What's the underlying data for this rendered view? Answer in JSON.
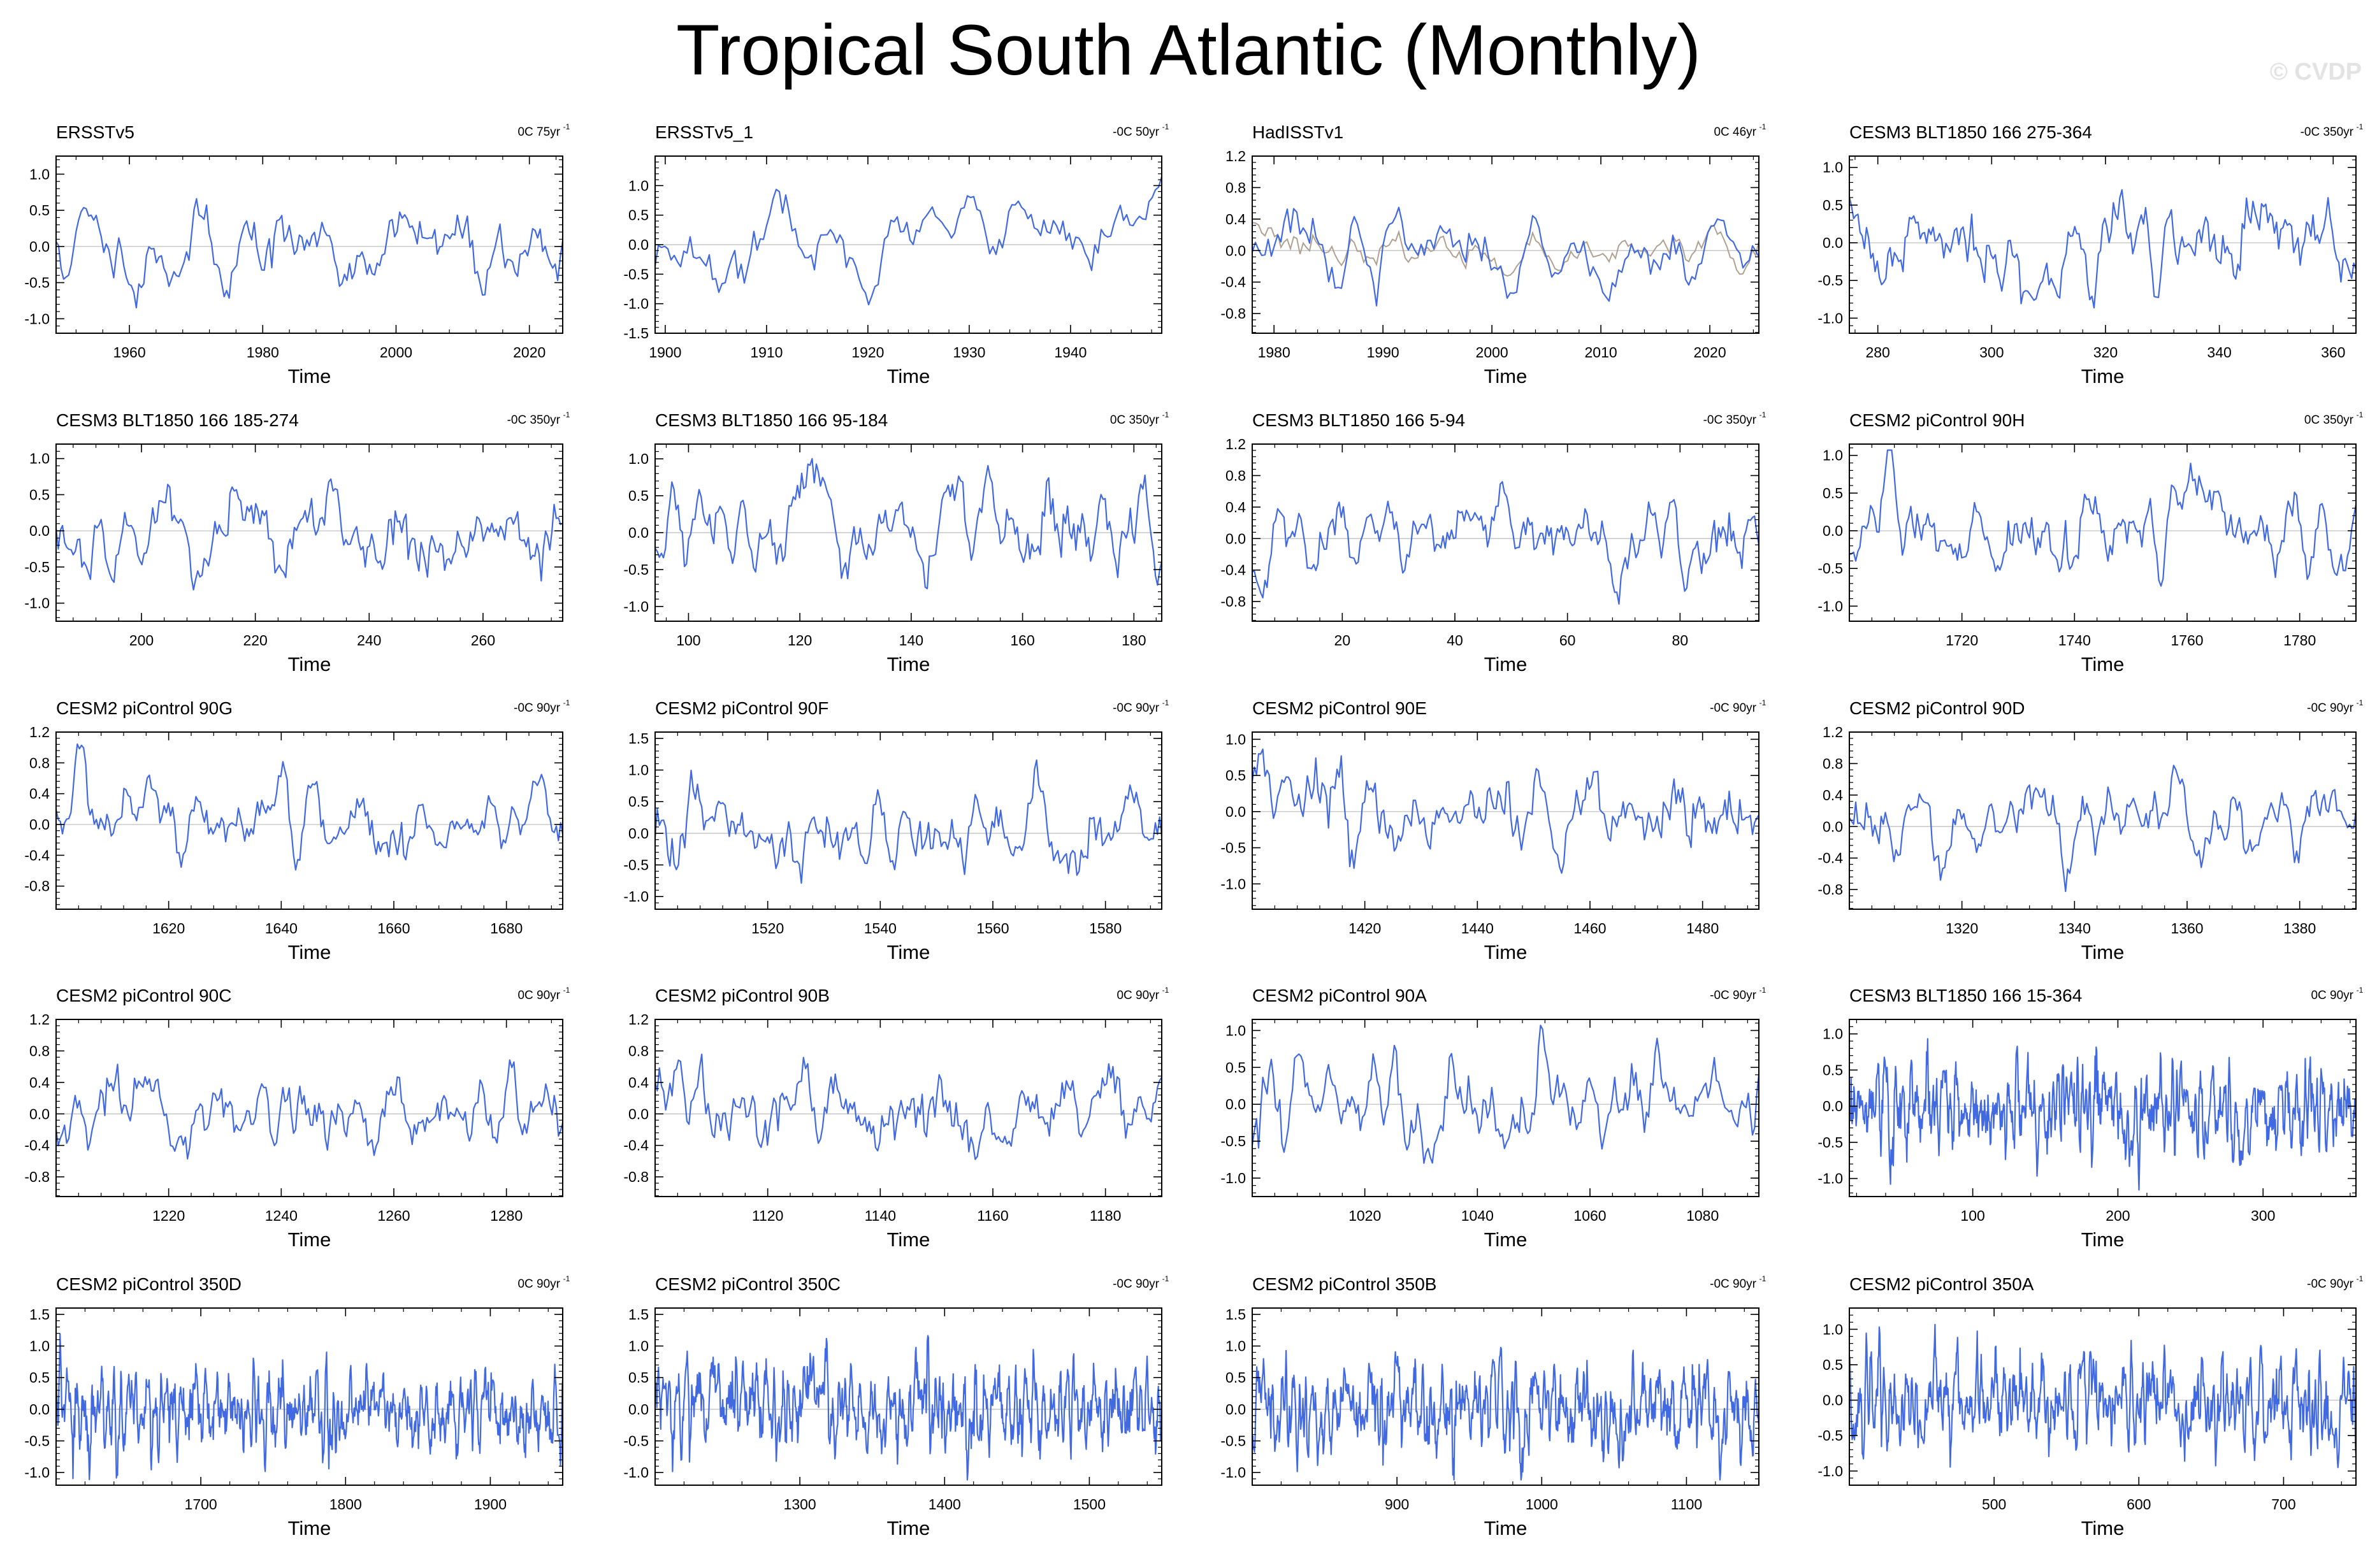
{
  "title": "Tropical South Atlantic (Monthly)",
  "watermark": "© CVDP",
  "series_color": "#4169e1",
  "secondary_color": "#b0a090",
  "chart_data": [
    {
      "type": "line",
      "title": "ERSSTv5",
      "trend": "0C 75yr",
      "xlabel": "Time",
      "xlim": [
        1949,
        2025
      ],
      "xticks": [
        1960,
        1980,
        2000,
        2020
      ],
      "ylim": [
        -1.2,
        1.25
      ],
      "yticks": [
        -1.0,
        -0.5,
        0.0,
        0.5,
        1.0
      ],
      "ytick_labels": [
        "-1.0",
        "-0.5",
        "0.0",
        "0.5",
        "1.0"
      ],
      "amp": 0.32,
      "smooth": 6,
      "seed": 11
    },
    {
      "type": "line",
      "title": "ERSSTv5_1",
      "trend": "-0C 50yr",
      "xlabel": "Time",
      "xlim": [
        1899,
        1949
      ],
      "xticks": [
        1900,
        1910,
        1920,
        1930,
        1940
      ],
      "ylim": [
        -1.5,
        1.5
      ],
      "yticks": [
        -1.5,
        -1.0,
        -0.5,
        0.0,
        0.5,
        1.0
      ],
      "ytick_labels": [
        "-1.5",
        "-1.0",
        "-0.5",
        "0.0",
        "0.5",
        "1.0"
      ],
      "amp": 0.38,
      "smooth": 8,
      "seed": 23
    },
    {
      "type": "line",
      "title": "HadISSTv1",
      "trend": "0C 46yr",
      "xlabel": "Time",
      "xlim": [
        1978,
        2024.5
      ],
      "xticks": [
        1980,
        1990,
        2000,
        2010,
        2020
      ],
      "ylim": [
        -1.05,
        1.2
      ],
      "yticks": [
        -0.8,
        -0.4,
        0.0,
        0.4,
        0.8,
        1.2
      ],
      "ytick_labels": [
        "-0.8",
        "-0.4",
        "0.0",
        "0.4",
        "0.8",
        "1.2"
      ],
      "amp": 0.28,
      "smooth": 6,
      "seed": 37,
      "secondary": true
    },
    {
      "type": "line",
      "title": "CESM3 BLT1850 166 275-364",
      "trend": "-0C 350yr",
      "xlabel": "Time",
      "xlim": [
        275,
        364
      ],
      "xticks": [
        280,
        300,
        320,
        340,
        360
      ],
      "ylim": [
        -1.2,
        1.15
      ],
      "yticks": [
        -1.0,
        -0.5,
        0.0,
        0.5,
        1.0
      ],
      "ytick_labels": [
        "-1.0",
        "-0.5",
        "0.0",
        "0.5",
        "1.0"
      ],
      "amp": 0.34,
      "smooth": 5,
      "seed": 41
    },
    {
      "type": "line",
      "title": "CESM3 BLT1850 166 185-274",
      "trend": "-0C 350yr",
      "xlabel": "Time",
      "xlim": [
        185,
        274
      ],
      "xticks": [
        200,
        220,
        240,
        260
      ],
      "ylim": [
        -1.25,
        1.2
      ],
      "yticks": [
        -1.0,
        -0.5,
        0.0,
        0.5,
        1.0
      ],
      "ytick_labels": [
        "-1.0",
        "-0.5",
        "0.0",
        "0.5",
        "1.0"
      ],
      "amp": 0.34,
      "smooth": 5,
      "seed": 53
    },
    {
      "type": "line",
      "title": "CESM3 BLT1850 166 95-184",
      "trend": "0C 350yr",
      "xlabel": "Time",
      "xlim": [
        94,
        185
      ],
      "xticks": [
        100,
        120,
        140,
        160,
        180
      ],
      "ylim": [
        -1.2,
        1.2
      ],
      "yticks": [
        -1.0,
        -0.5,
        0.0,
        0.5,
        1.0
      ],
      "ytick_labels": [
        "-1.0",
        "-0.5",
        "0.0",
        "0.5",
        "1.0"
      ],
      "amp": 0.34,
      "smooth": 5,
      "seed": 67
    },
    {
      "type": "line",
      "title": "CESM3 BLT1850 166 5-94",
      "trend": "-0C 350yr",
      "xlabel": "Time",
      "xlim": [
        4,
        94
      ],
      "xticks": [
        20,
        40,
        60,
        80
      ],
      "ylim": [
        -1.05,
        1.2
      ],
      "yticks": [
        -0.8,
        -0.4,
        0.0,
        0.4,
        0.8,
        1.2
      ],
      "ytick_labels": [
        "-0.8",
        "-0.4",
        "0.0",
        "0.4",
        "0.8",
        "1.2"
      ],
      "amp": 0.3,
      "smooth": 5,
      "seed": 71
    },
    {
      "type": "line",
      "title": "CESM2 piControl 90H",
      "trend": "0C 350yr",
      "xlabel": "Time",
      "xlim": [
        1700,
        1790
      ],
      "xticks": [
        1720,
        1740,
        1760,
        1780
      ],
      "ylim": [
        -1.2,
        1.15
      ],
      "yticks": [
        -1.0,
        -0.5,
        0.0,
        0.5,
        1.0
      ],
      "ytick_labels": [
        "-1.0",
        "-0.5",
        "0.0",
        "0.5",
        "1.0"
      ],
      "amp": 0.34,
      "smooth": 5,
      "seed": 83
    },
    {
      "type": "line",
      "title": "CESM2 piControl 90G",
      "trend": "-0C 90yr",
      "xlabel": "Time",
      "xlim": [
        1600,
        1690
      ],
      "xticks": [
        1620,
        1640,
        1660,
        1680
      ],
      "ylim": [
        -1.1,
        1.2
      ],
      "yticks": [
        -0.8,
        -0.4,
        0.0,
        0.4,
        0.8,
        1.2
      ],
      "ytick_labels": [
        "-0.8",
        "-0.4",
        "0.0",
        "0.4",
        "0.8",
        "1.2"
      ],
      "amp": 0.3,
      "smooth": 5,
      "seed": 97
    },
    {
      "type": "line",
      "title": "CESM2 piControl 90F",
      "trend": "-0C 90yr",
      "xlabel": "Time",
      "xlim": [
        1500,
        1590
      ],
      "xticks": [
        1520,
        1540,
        1560,
        1580
      ],
      "ylim": [
        -1.2,
        1.6
      ],
      "yticks": [
        -1.0,
        -0.5,
        0.0,
        0.5,
        1.0,
        1.5
      ],
      "ytick_labels": [
        "-1.0",
        "-0.5",
        "0.0",
        "0.5",
        "1.0",
        "1.5"
      ],
      "amp": 0.36,
      "smooth": 5,
      "seed": 101
    },
    {
      "type": "line",
      "title": "CESM2 piControl 90E",
      "trend": "-0C 90yr",
      "xlabel": "Time",
      "xlim": [
        1400,
        1490
      ],
      "xticks": [
        1420,
        1440,
        1460,
        1480
      ],
      "ylim": [
        -1.35,
        1.1
      ],
      "yticks": [
        -1.0,
        -0.5,
        0.0,
        0.5,
        1.0
      ],
      "ytick_labels": [
        "-1.0",
        "-0.5",
        "0.0",
        "0.5",
        "1.0"
      ],
      "amp": 0.32,
      "smooth": 5,
      "seed": 113
    },
    {
      "type": "line",
      "title": "CESM2 piControl 90D",
      "trend": "-0C 90yr",
      "xlabel": "Time",
      "xlim": [
        1300,
        1390
      ],
      "xticks": [
        1320,
        1340,
        1360,
        1380
      ],
      "ylim": [
        -1.05,
        1.2
      ],
      "yticks": [
        -0.8,
        -0.4,
        0.0,
        0.4,
        0.8,
        1.2
      ],
      "ytick_labels": [
        "-0.8",
        "-0.4",
        "0.0",
        "0.4",
        "0.8",
        "1.2"
      ],
      "amp": 0.28,
      "smooth": 5,
      "seed": 127
    },
    {
      "type": "line",
      "title": "CESM2 piControl 90C",
      "trend": "0C 90yr",
      "xlabel": "Time",
      "xlim": [
        1200,
        1290
      ],
      "xticks": [
        1220,
        1240,
        1260,
        1280
      ],
      "ylim": [
        -1.05,
        1.2
      ],
      "yticks": [
        -0.8,
        -0.4,
        0.0,
        0.4,
        0.8,
        1.2
      ],
      "ytick_labels": [
        "-0.8",
        "-0.4",
        "0.0",
        "0.4",
        "0.8",
        "1.2"
      ],
      "amp": 0.3,
      "smooth": 5,
      "seed": 131
    },
    {
      "type": "line",
      "title": "CESM2 piControl 90B",
      "trend": "0C 90yr",
      "xlabel": "Time",
      "xlim": [
        1100,
        1190
      ],
      "xticks": [
        1120,
        1140,
        1160,
        1180
      ],
      "ylim": [
        -1.05,
        1.2
      ],
      "yticks": [
        -0.8,
        -0.4,
        0.0,
        0.4,
        0.8,
        1.2
      ],
      "ytick_labels": [
        "-0.8",
        "-0.4",
        "0.0",
        "0.4",
        "0.8",
        "1.2"
      ],
      "amp": 0.3,
      "smooth": 5,
      "seed": 149
    },
    {
      "type": "line",
      "title": "CESM2 piControl 90A",
      "trend": "-0C 90yr",
      "xlabel": "Time",
      "xlim": [
        1000,
        1090
      ],
      "xticks": [
        1020,
        1040,
        1060,
        1080
      ],
      "ylim": [
        -1.25,
        1.15
      ],
      "yticks": [
        -1.0,
        -0.5,
        0.0,
        0.5,
        1.0
      ],
      "ytick_labels": [
        "-1.0",
        "-0.5",
        "0.0",
        "0.5",
        "1.0"
      ],
      "amp": 0.32,
      "smooth": 5,
      "seed": 157
    },
    {
      "type": "line",
      "title": "CESM3 BLT1850 166 15-364",
      "trend": "0C 90yr",
      "xlabel": "Time",
      "xlim": [
        15,
        364
      ],
      "xticks": [
        100,
        200,
        300
      ],
      "ylim": [
        -1.25,
        1.2
      ],
      "yticks": [
        -1.0,
        -0.5,
        0.0,
        0.5,
        1.0
      ],
      "ytick_labels": [
        "-1.0",
        "-0.5",
        "0.0",
        "0.5",
        "1.0"
      ],
      "amp": 0.34,
      "smooth": 3,
      "seed": 163
    },
    {
      "type": "line",
      "title": "CESM2 piControl 350D",
      "trend": "0C 90yr",
      "xlabel": "Time",
      "xlim": [
        1600,
        1950
      ],
      "xticks": [
        1700,
        1800,
        1900
      ],
      "ylim": [
        -1.2,
        1.6
      ],
      "yticks": [
        -1.0,
        -0.5,
        0.0,
        0.5,
        1.0,
        1.5
      ],
      "ytick_labels": [
        "-1.0",
        "-0.5",
        "0.0",
        "0.5",
        "1.0",
        "1.5"
      ],
      "amp": 0.36,
      "smooth": 3,
      "seed": 173
    },
    {
      "type": "line",
      "title": "CESM2 piControl 350C",
      "trend": "-0C 90yr",
      "xlabel": "Time",
      "xlim": [
        1200,
        1550
      ],
      "xticks": [
        1300,
        1400,
        1500
      ],
      "ylim": [
        -1.2,
        1.6
      ],
      "yticks": [
        -1.0,
        -0.5,
        0.0,
        0.5,
        1.0,
        1.5
      ],
      "ytick_labels": [
        "-1.0",
        "-0.5",
        "0.0",
        "0.5",
        "1.0",
        "1.5"
      ],
      "amp": 0.36,
      "smooth": 3,
      "seed": 181
    },
    {
      "type": "line",
      "title": "CESM2 piControl 350B",
      "trend": "-0C 90yr",
      "xlabel": "Time",
      "xlim": [
        800,
        1150
      ],
      "xticks": [
        900,
        1000,
        1100
      ],
      "ylim": [
        -1.2,
        1.6
      ],
      "yticks": [
        -1.0,
        -0.5,
        0.0,
        0.5,
        1.0,
        1.5
      ],
      "ytick_labels": [
        "-1.0",
        "-0.5",
        "0.0",
        "0.5",
        "1.0",
        "1.5"
      ],
      "amp": 0.36,
      "smooth": 3,
      "seed": 191
    },
    {
      "type": "line",
      "title": "CESM2 piControl 350A",
      "trend": "-0C 90yr",
      "xlabel": "Time",
      "xlim": [
        400,
        750
      ],
      "xticks": [
        500,
        600,
        700
      ],
      "ylim": [
        -1.2,
        1.3
      ],
      "yticks": [
        -1.0,
        -0.5,
        0.0,
        0.5,
        1.0
      ],
      "ytick_labels": [
        "-1.0",
        "-0.5",
        "0.0",
        "0.5",
        "1.0"
      ],
      "amp": 0.34,
      "smooth": 3,
      "seed": 197
    }
  ]
}
